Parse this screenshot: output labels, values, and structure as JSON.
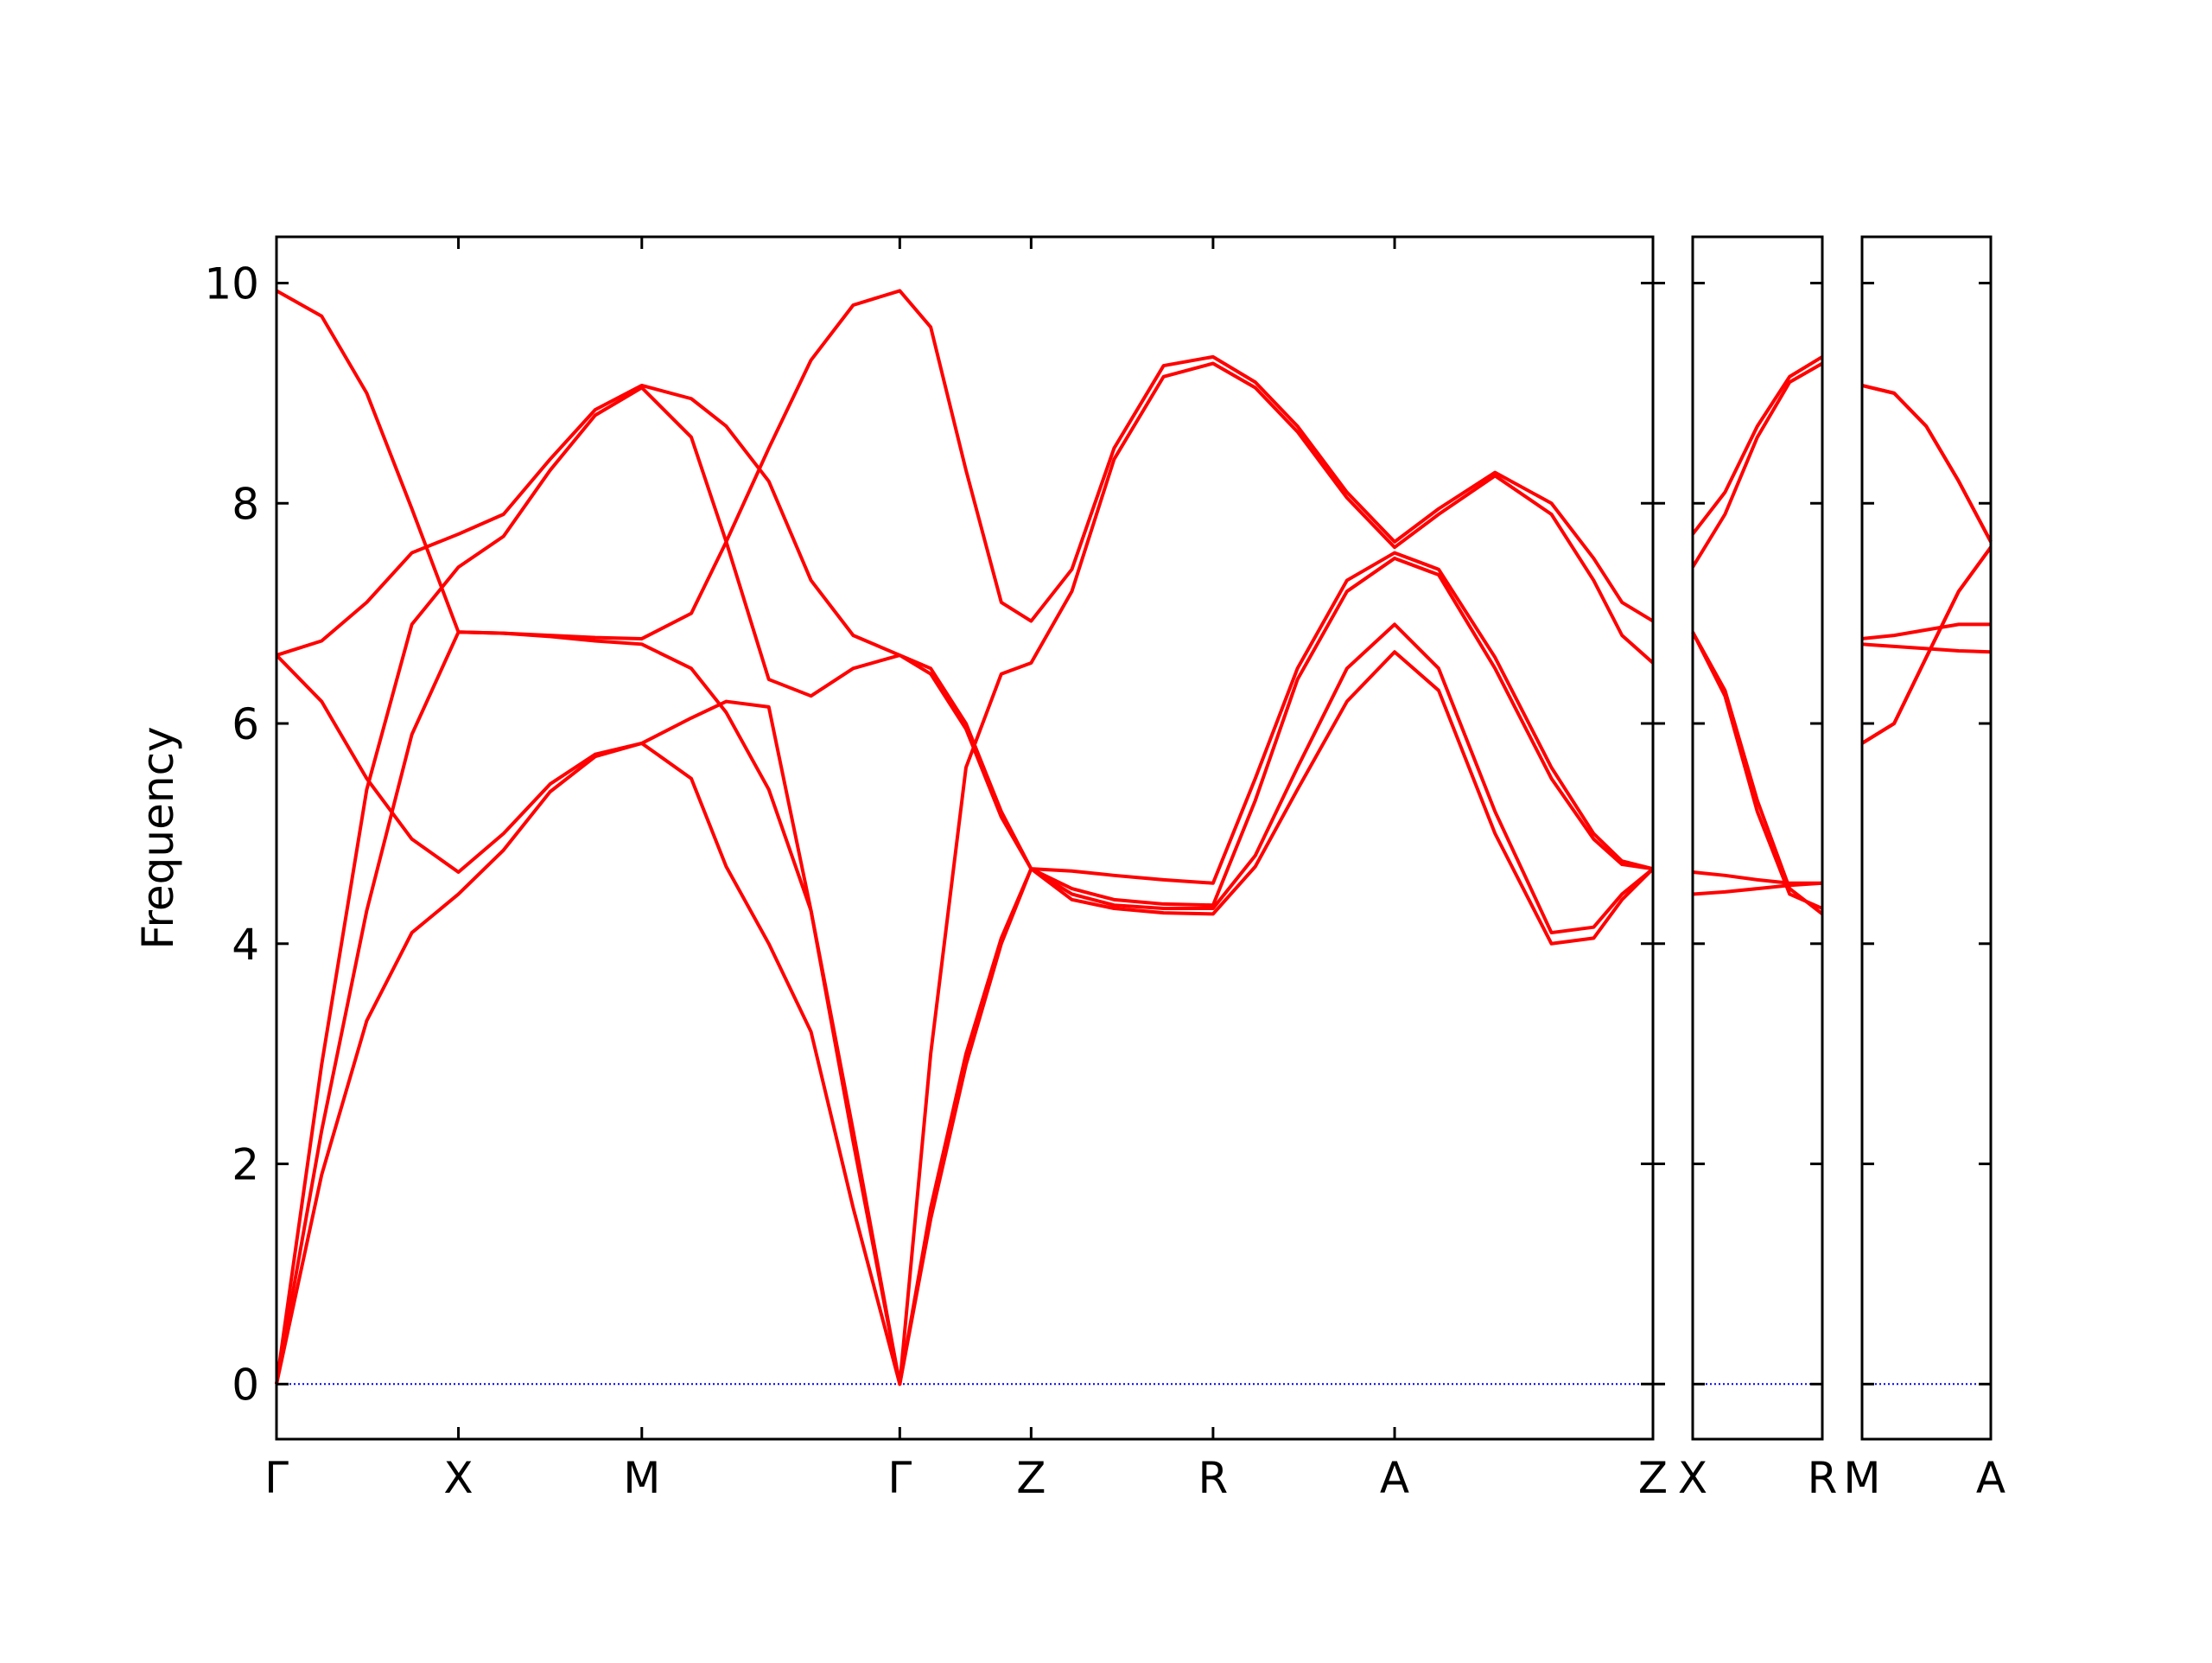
{
  "chart_data": [
    {
      "type": "line",
      "y_label": "Frequency",
      "color": "#ff0000",
      "ytick_labels": true,
      "hlines": [
        0
      ],
      "hline_color": "#0000ff",
      "xlim": [
        0,
        3.783
      ],
      "ylim": [
        -0.5,
        10.42
      ],
      "xticks": [
        {
          "value": 0,
          "label": "Γ"
        },
        {
          "value": 0.5,
          "label": "X"
        },
        {
          "value": 1.004,
          "label": "M"
        },
        {
          "value": 1.713,
          "label": "Γ"
        },
        {
          "value": 2.074,
          "label": "Z"
        },
        {
          "value": 2.574,
          "label": "R"
        },
        {
          "value": 3.073,
          "label": "A"
        },
        {
          "value": 3.783,
          "label": "Z"
        }
      ],
      "yticks": [
        0,
        2,
        4,
        6,
        8,
        10
      ],
      "x": [
        0,
        0.124,
        0.248,
        0.372,
        0.5,
        0.624,
        0.752,
        0.876,
        1.004,
        1.14,
        1.236,
        1.353,
        1.469,
        1.585,
        1.713,
        1.798,
        1.895,
        1.992,
        2.074,
        2.186,
        2.302,
        2.438,
        2.574,
        2.69,
        2.806,
        2.942,
        3.073,
        3.194,
        3.349,
        3.504,
        3.62,
        3.698,
        3.783
      ],
      "series": [
        {
          "values": [
            9.93,
            9.7,
            9.0,
            7.95,
            6.83,
            6.82,
            6.8,
            6.78,
            6.77,
            7.0,
            7.65,
            8.5,
            9.3,
            9.8,
            9.93,
            9.6,
            8.3,
            7.1,
            6.93,
            7.4,
            8.5,
            9.25,
            9.33,
            9.1,
            8.7,
            8.1,
            7.65,
            7.95,
            8.28,
            8.0,
            7.5,
            7.1,
            6.93
          ]
        },
        {
          "values": [
            6.62,
            6.75,
            7.1,
            7.55,
            7.72,
            7.9,
            8.4,
            8.85,
            9.07,
            8.95,
            8.7,
            8.2,
            7.3,
            6.8,
            6.62,
            6.5,
            6.0,
            5.2,
            4.68,
            4.66,
            4.62,
            4.58,
            4.55,
            5.5,
            6.5,
            7.3,
            7.55,
            7.4,
            6.6,
            5.6,
            5.0,
            4.75,
            4.68
          ]
        },
        {
          "values": [
            0,
            2.9,
            5.4,
            6.9,
            7.42,
            7.7,
            8.3,
            8.8,
            9.05,
            8.6,
            7.65,
            6.4,
            6.25,
            6.5,
            6.62,
            6.45,
            5.95,
            5.15,
            4.68,
            4.5,
            4.4,
            4.36,
            4.35,
            5.3,
            6.4,
            7.2,
            7.5,
            7.35,
            6.5,
            5.5,
            4.95,
            4.72,
            4.68
          ]
        },
        {
          "values": [
            6.62,
            6.2,
            5.5,
            4.95,
            4.65,
            5.0,
            5.45,
            5.72,
            5.82,
            6.05,
            6.2,
            6.15,
            4.3,
            2.3,
            0,
            3.0,
            5.6,
            6.45,
            6.55,
            7.2,
            8.4,
            9.15,
            9.27,
            9.05,
            8.65,
            8.05,
            7.6,
            7.9,
            8.25,
            7.9,
            7.3,
            6.8,
            6.55
          ]
        },
        {
          "values": [
            0,
            2.3,
            4.3,
            5.9,
            6.83,
            6.82,
            6.79,
            6.75,
            6.72,
            6.5,
            6.1,
            5.4,
            4.3,
            2.2,
            0,
            1.5,
            2.9,
            4.0,
            4.68,
            4.45,
            4.35,
            4.32,
            4.32,
            4.8,
            5.6,
            6.5,
            6.9,
            6.5,
            5.2,
            4.1,
            4.15,
            4.45,
            4.68
          ]
        },
        {
          "values": [
            0,
            1.9,
            3.3,
            4.1,
            4.45,
            4.85,
            5.38,
            5.7,
            5.82,
            5.5,
            4.7,
            4.0,
            3.2,
            1.6,
            0,
            1.6,
            3.0,
            4.05,
            4.68,
            4.4,
            4.32,
            4.28,
            4.27,
            4.7,
            5.4,
            6.2,
            6.65,
            6.3,
            5.0,
            4.0,
            4.05,
            4.4,
            4.68
          ]
        }
      ]
    },
    {
      "type": "line",
      "color": "#ff0000",
      "ytick_labels": false,
      "hlines": [
        0
      ],
      "hline_color": "#0000ff",
      "xlim": [
        0,
        0.357
      ],
      "ylim": [
        -0.5,
        10.42
      ],
      "xticks": [
        {
          "value": 0,
          "label": "X"
        },
        {
          "value": 0.357,
          "label": "R"
        }
      ],
      "yticks": [
        0,
        2,
        4,
        6,
        8,
        10
      ],
      "x": [
        0,
        0.089,
        0.178,
        0.267,
        0.357
      ],
      "series": [
        {
          "values": [
            7.72,
            8.1,
            8.7,
            9.15,
            9.33
          ]
        },
        {
          "values": [
            7.42,
            7.9,
            8.6,
            9.1,
            9.27
          ]
        },
        {
          "values": [
            6.83,
            6.3,
            5.3,
            4.5,
            4.27
          ]
        },
        {
          "values": [
            6.83,
            6.25,
            5.2,
            4.45,
            4.32
          ]
        },
        {
          "values": [
            4.65,
            4.62,
            4.58,
            4.55,
            4.55
          ]
        },
        {
          "values": [
            4.45,
            4.47,
            4.5,
            4.53,
            4.55
          ]
        }
      ]
    },
    {
      "type": "line",
      "color": "#ff0000",
      "ytick_labels": false,
      "hlines": [
        0
      ],
      "hline_color": "#0000ff",
      "xlim": [
        0,
        0.353
      ],
      "ylim": [
        -0.5,
        10.42
      ],
      "xticks": [
        {
          "value": 0,
          "label": "M"
        },
        {
          "value": 0.353,
          "label": "A"
        }
      ],
      "yticks": [
        0,
        2,
        4,
        6,
        8,
        10
      ],
      "x": [
        0,
        0.088,
        0.176,
        0.265,
        0.353
      ],
      "series": [
        {
          "values": [
            9.07,
            9.0,
            8.7,
            8.2,
            7.65
          ]
        },
        {
          "values": [
            9.07,
            9.0,
            8.7,
            8.2,
            7.65
          ]
        },
        {
          "values": [
            6.77,
            6.8,
            6.85,
            6.9,
            6.9
          ]
        },
        {
          "values": [
            6.72,
            6.7,
            6.68,
            6.66,
            6.65
          ]
        },
        {
          "values": [
            5.82,
            6.0,
            6.6,
            7.2,
            7.6
          ]
        },
        {
          "values": [
            5.82,
            6.0,
            6.6,
            7.2,
            7.6
          ]
        }
      ]
    }
  ]
}
